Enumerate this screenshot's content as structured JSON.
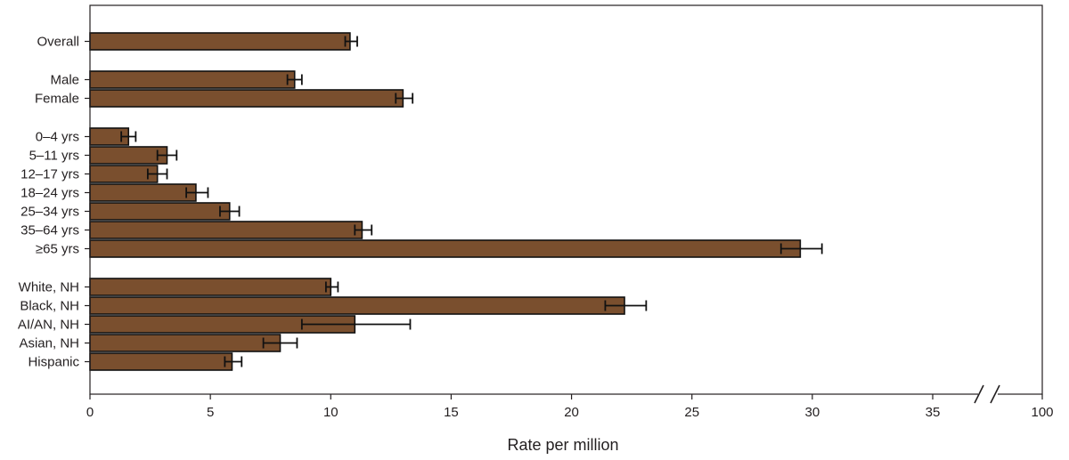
{
  "chart_data": {
    "type": "bar",
    "orientation": "horizontal",
    "xlabel": "Rate per million",
    "xlim": [
      0,
      100
    ],
    "axis_break": {
      "from": 38,
      "to": 100
    },
    "x_ticks": [
      {
        "value": 0,
        "label": "0"
      },
      {
        "value": 5,
        "label": "5"
      },
      {
        "value": 10,
        "label": "10"
      },
      {
        "value": 15,
        "label": "15"
      },
      {
        "value": 20,
        "label": "20"
      },
      {
        "value": 25,
        "label": "25"
      },
      {
        "value": 30,
        "label": "30"
      },
      {
        "value": 35,
        "label": "35"
      },
      {
        "value": 100,
        "label": "100"
      }
    ],
    "bar_color": "#7a4f2e",
    "bar_stroke": "#111111",
    "error_bars": true,
    "groups": [
      {
        "name": "overall",
        "items": [
          {
            "label": "Overall",
            "value": 10.8,
            "ci": [
              10.6,
              11.1
            ]
          }
        ]
      },
      {
        "name": "sex",
        "items": [
          {
            "label": "Male",
            "value": 8.5,
            "ci": [
              8.2,
              8.8
            ]
          },
          {
            "label": "Female",
            "value": 13.0,
            "ci": [
              12.7,
              13.4
            ]
          }
        ]
      },
      {
        "name": "age",
        "items": [
          {
            "label": "0–4 yrs",
            "value": 1.6,
            "ci": [
              1.3,
              1.9
            ]
          },
          {
            "label": "5–11 yrs",
            "value": 3.2,
            "ci": [
              2.8,
              3.6
            ]
          },
          {
            "label": "12–17 yrs",
            "value": 2.8,
            "ci": [
              2.4,
              3.2
            ]
          },
          {
            "label": "18–24 yrs",
            "value": 4.4,
            "ci": [
              4.0,
              4.9
            ]
          },
          {
            "label": "25–34 yrs",
            "value": 5.8,
            "ci": [
              5.4,
              6.2
            ]
          },
          {
            "label": "35–64 yrs",
            "value": 11.3,
            "ci": [
              11.0,
              11.7
            ]
          },
          {
            "label": "≥65 yrs",
            "value": 29.5,
            "ci": [
              28.7,
              30.4
            ]
          }
        ]
      },
      {
        "name": "race_ethnicity",
        "items": [
          {
            "label": "White, NH",
            "value": 10.0,
            "ci": [
              9.8,
              10.3
            ]
          },
          {
            "label": "Black, NH",
            "value": 22.2,
            "ci": [
              21.4,
              23.1
            ]
          },
          {
            "label": "AI/AN, NH",
            "value": 11.0,
            "ci": [
              8.8,
              13.3
            ]
          },
          {
            "label": "Asian, NH",
            "value": 7.9,
            "ci": [
              7.2,
              8.6
            ]
          },
          {
            "label": "Hispanic",
            "value": 5.9,
            "ci": [
              5.6,
              6.3
            ]
          }
        ]
      }
    ]
  }
}
